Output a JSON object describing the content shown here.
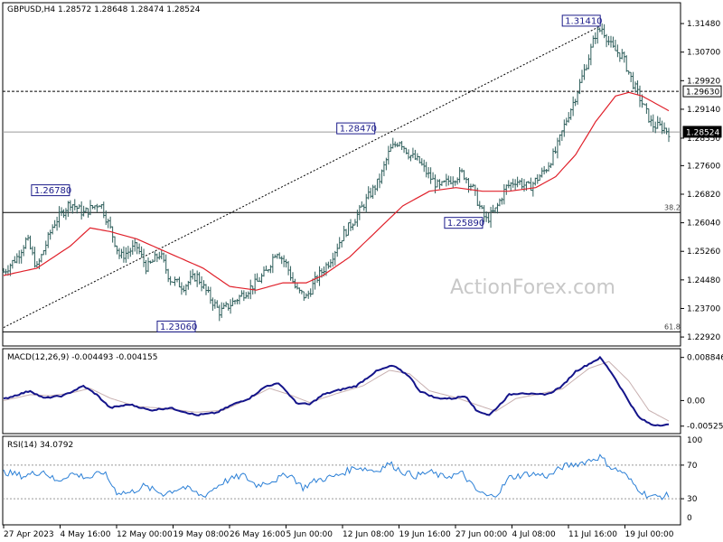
{
  "chart_data": [
    {
      "type": "candlestick",
      "header": "GBPUSD,H4  1.28572 1.28648 1.28474 1.28524",
      "watermark": "ActionForex.com",
      "ylim": [
        1.227,
        1.32
      ],
      "y_ticks": [
        "1.31480",
        "1.30700",
        "1.29920",
        "1.29140",
        "1.28350",
        "1.27600",
        "1.26820",
        "1.26040",
        "1.25260",
        "1.24480",
        "1.23700",
        "1.22920"
      ],
      "price_tags": [
        {
          "text": "1.29630",
          "value": 1.2963,
          "style": "outline"
        },
        {
          "text": "1.28524",
          "value": 1.28524,
          "style": "filled"
        }
      ],
      "x_labels": [
        "27 Apr 2023",
        "4 May 16:00",
        "12 May 00:00",
        "19 May 08:00",
        "26 May 16:00",
        "5 Jun 00:00",
        "12 Jun 08:00",
        "19 Jun 16:00",
        "27 Jun 00:00",
        "4 Jul 08:00",
        "11 Jul 16:00",
        "19 Jul 00:00"
      ],
      "annotations": [
        {
          "text": "1.26780",
          "x": 0.099,
          "y": 1.2678
        },
        {
          "text": "1.23060",
          "x": 0.288,
          "y": 1.2306
        },
        {
          "text": "1.28470",
          "x": 0.558,
          "y": 1.2847
        },
        {
          "text": "1.25890",
          "x": 0.72,
          "y": 1.2589
        },
        {
          "text": "1.31410",
          "x": 0.897,
          "y": 1.3141
        }
      ],
      "horizontal_lines": [
        {
          "value": 1.2963,
          "style": "dashed",
          "label": ""
        },
        {
          "value": 1.2852,
          "style": "solid-gray",
          "label": ""
        },
        {
          "value": 1.2632,
          "style": "solid",
          "label": "38.2"
        },
        {
          "value": 1.2306,
          "style": "solid",
          "label": "61.8"
        }
      ],
      "trendline": {
        "from": [
          0.0,
          1.2318
        ],
        "to": [
          0.897,
          1.3141
        ],
        "style": "dotted"
      },
      "close_keypoints": [
        [
          0.0,
          1.247
        ],
        [
          0.02,
          1.251
        ],
        [
          0.035,
          1.256
        ],
        [
          0.05,
          1.248
        ],
        [
          0.075,
          1.26
        ],
        [
          0.1,
          1.266
        ],
        [
          0.12,
          1.263
        ],
        [
          0.145,
          1.266
        ],
        [
          0.16,
          1.259
        ],
        [
          0.175,
          1.251
        ],
        [
          0.2,
          1.254
        ],
        [
          0.215,
          1.248
        ],
        [
          0.235,
          1.252
        ],
        [
          0.25,
          1.245
        ],
        [
          0.27,
          1.243
        ],
        [
          0.29,
          1.246
        ],
        [
          0.31,
          1.24
        ],
        [
          0.325,
          1.236
        ],
        [
          0.34,
          1.238
        ],
        [
          0.36,
          1.241
        ],
        [
          0.38,
          1.244
        ],
        [
          0.395,
          1.247
        ],
        [
          0.41,
          1.253
        ],
        [
          0.425,
          1.249
        ],
        [
          0.44,
          1.242
        ],
        [
          0.455,
          1.24
        ],
        [
          0.47,
          1.245
        ],
        [
          0.49,
          1.25
        ],
        [
          0.51,
          1.257
        ],
        [
          0.53,
          1.262
        ],
        [
          0.55,
          1.268
        ],
        [
          0.565,
          1.272
        ],
        [
          0.58,
          1.28
        ],
        [
          0.595,
          1.283
        ],
        [
          0.61,
          1.279
        ],
        [
          0.625,
          1.277
        ],
        [
          0.64,
          1.273
        ],
        [
          0.655,
          1.27
        ],
        [
          0.67,
          1.272
        ],
        [
          0.69,
          1.274
        ],
        [
          0.705,
          1.27
        ],
        [
          0.715,
          1.265
        ],
        [
          0.725,
          1.261
        ],
        [
          0.74,
          1.264
        ],
        [
          0.755,
          1.27
        ],
        [
          0.77,
          1.272
        ],
        [
          0.79,
          1.27
        ],
        [
          0.8,
          1.272
        ],
        [
          0.815,
          1.275
        ],
        [
          0.83,
          1.28
        ],
        [
          0.845,
          1.288
        ],
        [
          0.86,
          1.295
        ],
        [
          0.875,
          1.303
        ],
        [
          0.89,
          1.312
        ],
        [
          0.9,
          1.3135
        ],
        [
          0.915,
          1.308
        ],
        [
          0.93,
          1.306
        ],
        [
          0.945,
          1.299
        ],
        [
          0.96,
          1.293
        ],
        [
          0.975,
          1.287
        ],
        [
          0.99,
          1.2865
        ],
        [
          1.0,
          1.2852
        ]
      ],
      "ma_keypoints": [
        [
          0.0,
          1.246
        ],
        [
          0.05,
          1.248
        ],
        [
          0.1,
          1.254
        ],
        [
          0.13,
          1.259
        ],
        [
          0.16,
          1.258
        ],
        [
          0.2,
          1.256
        ],
        [
          0.25,
          1.252
        ],
        [
          0.3,
          1.248
        ],
        [
          0.34,
          1.243
        ],
        [
          0.38,
          1.242
        ],
        [
          0.42,
          1.244
        ],
        [
          0.455,
          1.244
        ],
        [
          0.48,
          1.246
        ],
        [
          0.52,
          1.251
        ],
        [
          0.56,
          1.258
        ],
        [
          0.6,
          1.265
        ],
        [
          0.64,
          1.269
        ],
        [
          0.68,
          1.27
        ],
        [
          0.72,
          1.269
        ],
        [
          0.76,
          1.269
        ],
        [
          0.8,
          1.27
        ],
        [
          0.83,
          1.273
        ],
        [
          0.86,
          1.279
        ],
        [
          0.89,
          1.288
        ],
        [
          0.92,
          1.295
        ],
        [
          0.94,
          1.296
        ],
        [
          0.96,
          1.295
        ],
        [
          0.98,
          1.293
        ],
        [
          1.0,
          1.291
        ]
      ]
    },
    {
      "type": "line",
      "title": "MACD(12,26,9) -0.004493 -0.004155",
      "ylim": [
        -0.0066,
        0.0099
      ],
      "y_ticks": [
        "0.008846",
        "0.00",
        "-0.005252"
      ],
      "macd_keypoints": [
        [
          0.0,
          0.0003
        ],
        [
          0.04,
          0.002
        ],
        [
          0.06,
          0.0005
        ],
        [
          0.09,
          0.001
        ],
        [
          0.12,
          0.003
        ],
        [
          0.14,
          0.0012
        ],
        [
          0.16,
          -0.0015
        ],
        [
          0.19,
          -0.0008
        ],
        [
          0.22,
          -0.002
        ],
        [
          0.25,
          -0.0015
        ],
        [
          0.29,
          -0.003
        ],
        [
          0.32,
          -0.0025
        ],
        [
          0.345,
          -0.0008
        ],
        [
          0.37,
          0.0005
        ],
        [
          0.395,
          0.003
        ],
        [
          0.415,
          0.0035
        ],
        [
          0.44,
          -0.0005
        ],
        [
          0.46,
          -0.0008
        ],
        [
          0.48,
          0.0012
        ],
        [
          0.5,
          0.002
        ],
        [
          0.53,
          0.003
        ],
        [
          0.56,
          0.006
        ],
        [
          0.585,
          0.0072
        ],
        [
          0.61,
          0.005
        ],
        [
          0.625,
          0.002
        ],
        [
          0.65,
          0.0005
        ],
        [
          0.675,
          0.0004
        ],
        [
          0.695,
          0.001
        ],
        [
          0.71,
          -0.002
        ],
        [
          0.73,
          -0.003
        ],
        [
          0.745,
          -0.001
        ],
        [
          0.76,
          0.0012
        ],
        [
          0.78,
          0.0016
        ],
        [
          0.8,
          0.0012
        ],
        [
          0.82,
          0.0014
        ],
        [
          0.84,
          0.003
        ],
        [
          0.86,
          0.006
        ],
        [
          0.88,
          0.0075
        ],
        [
          0.897,
          0.0088
        ],
        [
          0.915,
          0.0055
        ],
        [
          0.935,
          0.001
        ],
        [
          0.955,
          -0.0035
        ],
        [
          0.975,
          -0.005
        ],
        [
          1.0,
          -0.005
        ]
      ],
      "signal_keypoints": [
        [
          0.0,
          0.0
        ],
        [
          0.04,
          0.0012
        ],
        [
          0.07,
          0.001
        ],
        [
          0.1,
          0.0015
        ],
        [
          0.13,
          0.0025
        ],
        [
          0.16,
          0.0005
        ],
        [
          0.2,
          -0.0012
        ],
        [
          0.24,
          -0.0016
        ],
        [
          0.29,
          -0.0024
        ],
        [
          0.33,
          -0.002
        ],
        [
          0.36,
          -0.0002
        ],
        [
          0.4,
          0.0025
        ],
        [
          0.43,
          0.0012
        ],
        [
          0.46,
          -0.0004
        ],
        [
          0.5,
          0.0014
        ],
        [
          0.54,
          0.003
        ],
        [
          0.58,
          0.0062
        ],
        [
          0.61,
          0.0055
        ],
        [
          0.64,
          0.002
        ],
        [
          0.68,
          0.0006
        ],
        [
          0.71,
          -0.0008
        ],
        [
          0.74,
          -0.0022
        ],
        [
          0.77,
          0.0004
        ],
        [
          0.8,
          0.0012
        ],
        [
          0.84,
          0.0024
        ],
        [
          0.88,
          0.0066
        ],
        [
          0.91,
          0.008
        ],
        [
          0.94,
          0.004
        ],
        [
          0.97,
          -0.002
        ],
        [
          1.0,
          -0.0042
        ]
      ]
    },
    {
      "type": "line",
      "title": "RSI(14) 34.0792",
      "ylim": [
        0,
        100
      ],
      "y_ticks": [
        "100",
        "70",
        "30",
        "0"
      ],
      "levels": [
        70,
        30
      ],
      "rsi_keypoints": [
        [
          0.0,
          62
        ],
        [
          0.03,
          57
        ],
        [
          0.06,
          63
        ],
        [
          0.08,
          50
        ],
        [
          0.1,
          60
        ],
        [
          0.13,
          55
        ],
        [
          0.15,
          62
        ],
        [
          0.17,
          38
        ],
        [
          0.19,
          37
        ],
        [
          0.21,
          45
        ],
        [
          0.24,
          36
        ],
        [
          0.27,
          44
        ],
        [
          0.3,
          33
        ],
        [
          0.33,
          50
        ],
        [
          0.36,
          58
        ],
        [
          0.38,
          46
        ],
        [
          0.41,
          53
        ],
        [
          0.43,
          60
        ],
        [
          0.45,
          43
        ],
        [
          0.47,
          52
        ],
        [
          0.5,
          57
        ],
        [
          0.53,
          68
        ],
        [
          0.56,
          63
        ],
        [
          0.58,
          72
        ],
        [
          0.6,
          62
        ],
        [
          0.62,
          57
        ],
        [
          0.64,
          62
        ],
        [
          0.66,
          56
        ],
        [
          0.69,
          60
        ],
        [
          0.71,
          40
        ],
        [
          0.73,
          32
        ],
        [
          0.745,
          38
        ],
        [
          0.76,
          55
        ],
        [
          0.79,
          60
        ],
        [
          0.82,
          57
        ],
        [
          0.84,
          68
        ],
        [
          0.87,
          73
        ],
        [
          0.897,
          80
        ],
        [
          0.915,
          66
        ],
        [
          0.93,
          62
        ],
        [
          0.95,
          45
        ],
        [
          0.965,
          35
        ],
        [
          0.98,
          32
        ],
        [
          1.0,
          34
        ]
      ]
    }
  ]
}
